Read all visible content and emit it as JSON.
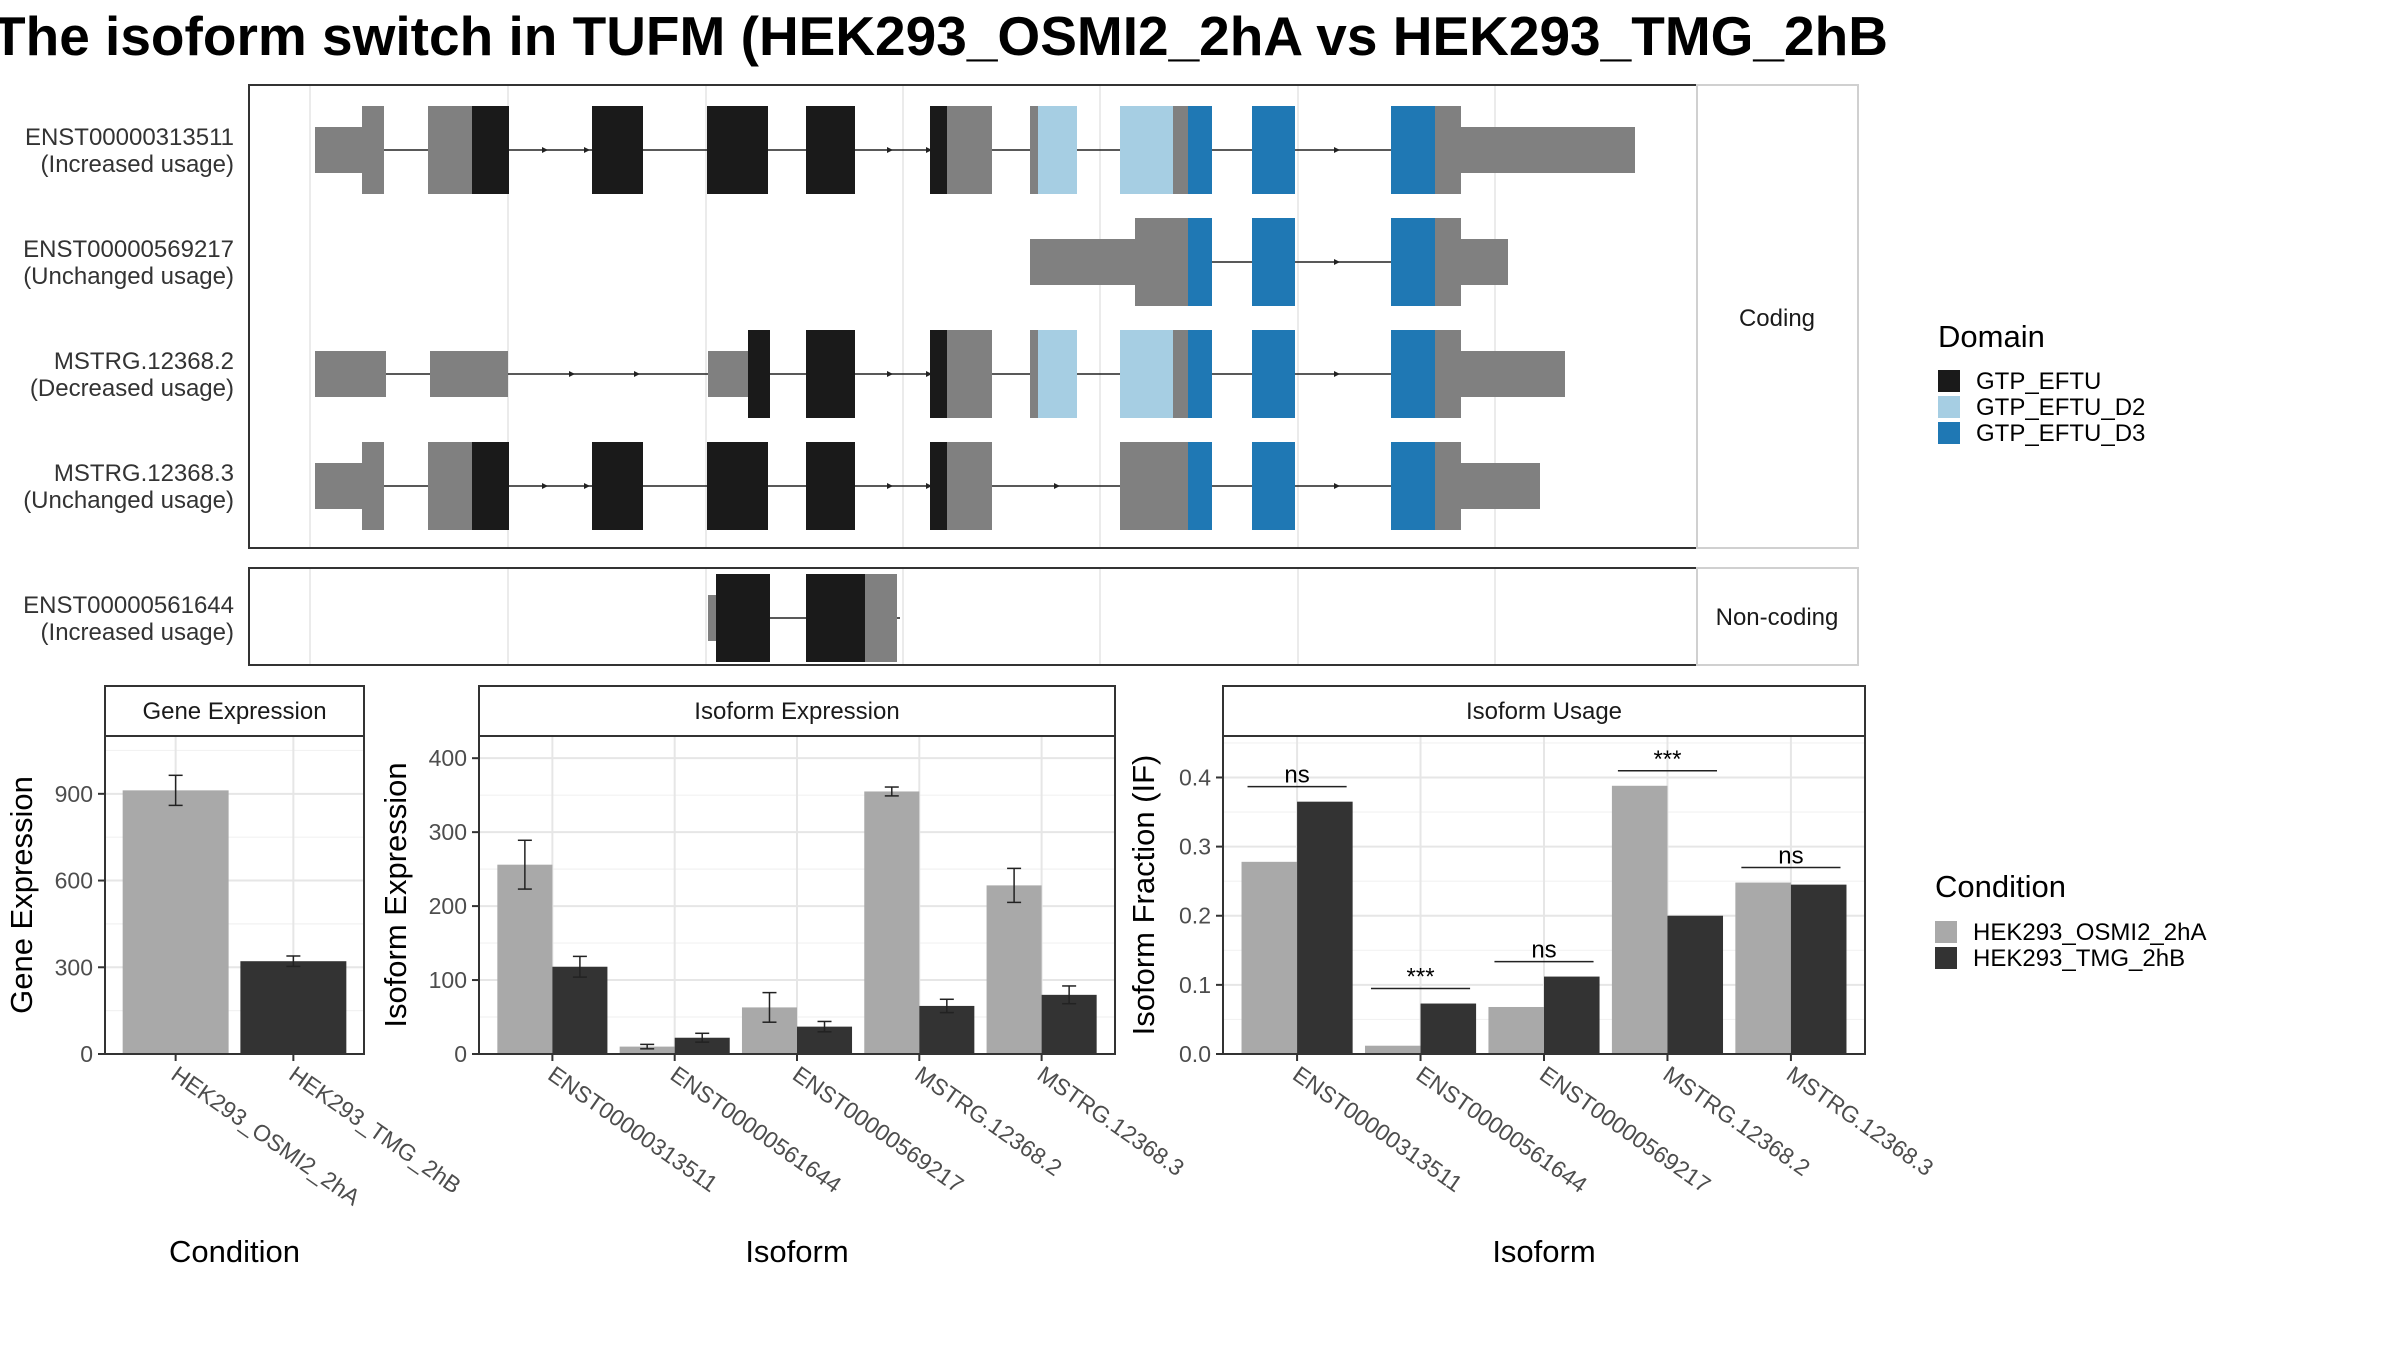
{
  "title": "The isoform switch in TUFM (HEK293_OSMI2_2hA vs HEK293_TMG_2hB",
  "colors": {
    "GTP_EFTU": "#1a1a1a",
    "GTP_EFTU_D2": "#a6cee3",
    "GTP_EFTU_D3": "#1f78b4",
    "exon": "#808080",
    "cond_A": "#a9a9a9",
    "cond_B": "#333333"
  },
  "structure": {
    "coding_label": "Coding",
    "noncoding_label": "Non-coding",
    "isoforms": [
      {
        "id": "ENST00000313511",
        "status": "(Increased usage)",
        "group": "coding"
      },
      {
        "id": "ENST00000569217",
        "status": "(Unchanged usage)",
        "group": "coding"
      },
      {
        "id": "MSTRG.12368.2",
        "status": "(Decreased usage)",
        "group": "coding"
      },
      {
        "id": "MSTRG.12368.3",
        "status": "(Unchanged usage)",
        "group": "coding"
      },
      {
        "id": "ENST00000561644",
        "status": "(Increased usage)",
        "group": "non-coding"
      }
    ]
  },
  "legend_domain": {
    "title": "Domain",
    "items": [
      {
        "label": "GTP_EFTU",
        "color": "#1a1a1a"
      },
      {
        "label": "GTP_EFTU_D2",
        "color": "#a6cee3"
      },
      {
        "label": "GTP_EFTU_D3",
        "color": "#1f78b4"
      }
    ]
  },
  "legend_condition": {
    "title": "Condition",
    "items": [
      {
        "label": "HEK293_OSMI2_2hA",
        "color": "#a9a9a9"
      },
      {
        "label": "HEK293_TMG_2hB",
        "color": "#333333"
      }
    ]
  },
  "chart_data": [
    {
      "type": "bar",
      "title": "Gene Expression",
      "xlabel": "Condition",
      "ylabel": "Gene Expression",
      "categories": [
        "HEK293_OSMI2_2hA",
        "HEK293_TMG_2hB"
      ],
      "values": [
        912,
        321
      ],
      "errors": [
        52,
        18
      ],
      "ylim": [
        0,
        1100
      ],
      "yticks": [
        0,
        300,
        600,
        900
      ]
    },
    {
      "type": "bar",
      "title": "Isoform Expression",
      "xlabel": "Isoform",
      "ylabel": "Isoform Expression",
      "categories": [
        "ENST00000313511",
        "ENST00000561644",
        "ENST00000569217",
        "MSTRG.12368.2",
        "MSTRG.12368.3"
      ],
      "series": [
        {
          "name": "HEK293_OSMI2_2hA",
          "values": [
            256,
            10,
            63,
            355,
            228
          ],
          "errors": [
            33,
            3,
            20,
            6,
            23
          ]
        },
        {
          "name": "HEK293_TMG_2hB",
          "values": [
            118,
            22,
            37,
            65,
            80
          ],
          "errors": [
            14,
            6,
            7,
            9,
            12
          ]
        }
      ],
      "ylim": [
        0,
        430
      ],
      "yticks": [
        0,
        100,
        200,
        300,
        400
      ]
    },
    {
      "type": "bar",
      "title": "Isoform Usage",
      "xlabel": "Isoform",
      "ylabel": "Isoform Fraction (IF)",
      "categories": [
        "ENST00000313511",
        "ENST00000561644",
        "ENST00000569217",
        "MSTRG.12368.2",
        "MSTRG.12368.3"
      ],
      "series": [
        {
          "name": "HEK293_OSMI2_2hA",
          "values": [
            0.278,
            0.012,
            0.068,
            0.388,
            0.248
          ]
        },
        {
          "name": "HEK293_TMG_2hB",
          "values": [
            0.365,
            0.073,
            0.112,
            0.2,
            0.245
          ]
        }
      ],
      "significance": [
        "ns",
        "***",
        "ns",
        "***",
        "ns"
      ],
      "ylim": [
        0,
        0.46
      ],
      "yticks": [
        "0.0",
        "0.1",
        "0.2",
        "0.3",
        "0.4"
      ]
    }
  ]
}
